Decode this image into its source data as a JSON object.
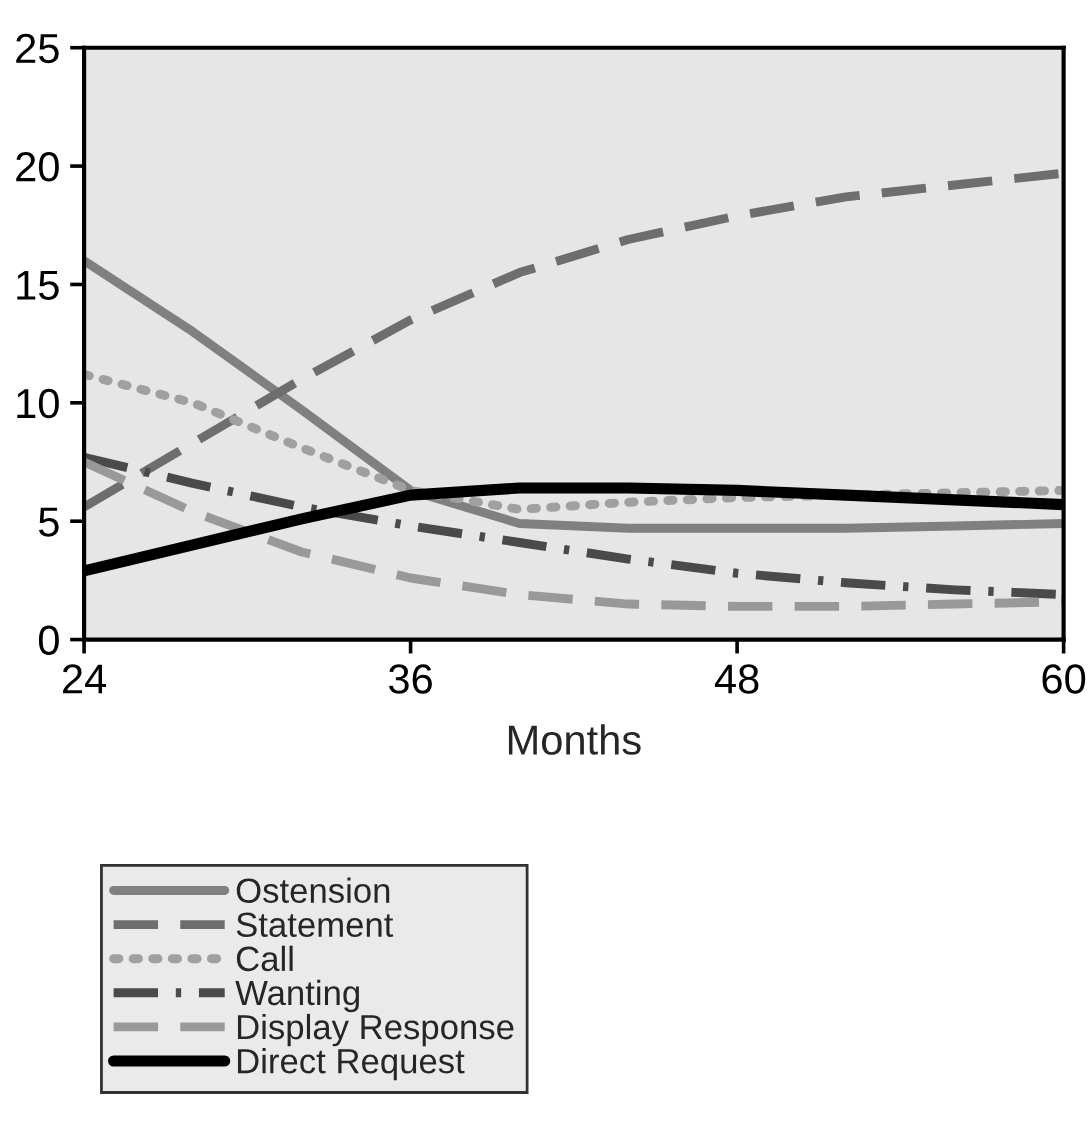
{
  "chart_data": {
    "type": "line",
    "xlabel": "Months",
    "x": [
      24,
      28,
      32,
      36,
      40,
      44,
      48,
      52,
      56,
      60
    ],
    "xlim": [
      24,
      60
    ],
    "xticks": [
      24,
      36,
      48,
      60
    ],
    "ylim": [
      0,
      25
    ],
    "yticks": [
      0,
      5,
      10,
      15,
      20,
      25
    ],
    "grid": false,
    "legend": "bottom",
    "marker": "none",
    "series": [
      {
        "name": "Ostension",
        "color": "#808080",
        "line_style": "solid",
        "values": [
          16,
          13,
          9.7,
          6.3,
          4.9,
          4.7,
          4.7,
          4.7,
          4.8,
          4.9
        ]
      },
      {
        "name": "Statement",
        "color": "#6e6e6e",
        "line_style": "dashed",
        "values": [
          5.6,
          8.3,
          11,
          13.5,
          15.5,
          16.9,
          17.9,
          18.7,
          19.2,
          19.7
        ]
      },
      {
        "name": "Call",
        "color": "#a0a0a0",
        "line_style": "dotted",
        "values": [
          11.2,
          10,
          8.1,
          6.3,
          5.5,
          5.8,
          6,
          6.1,
          6.2,
          6.3
        ]
      },
      {
        "name": "Wanting",
        "color": "#4a4a4a",
        "line_style": "dashdot",
        "values": [
          7.7,
          6.6,
          5.6,
          4.8,
          4.1,
          3.4,
          2.8,
          2.4,
          2.1,
          1.9
        ]
      },
      {
        "name": "Display Response",
        "color": "#999999",
        "line_style": "dashed",
        "values": [
          7.5,
          5.4,
          3.7,
          2.6,
          1.9,
          1.5,
          1.4,
          1.4,
          1.5,
          1.6
        ]
      },
      {
        "name": "Direct Request",
        "color": "#000000",
        "line_style": "solid",
        "values": [
          2.9,
          4,
          5.1,
          6.1,
          6.4,
          6.4,
          6.3,
          6.1,
          5.9,
          5.7
        ]
      }
    ]
  }
}
